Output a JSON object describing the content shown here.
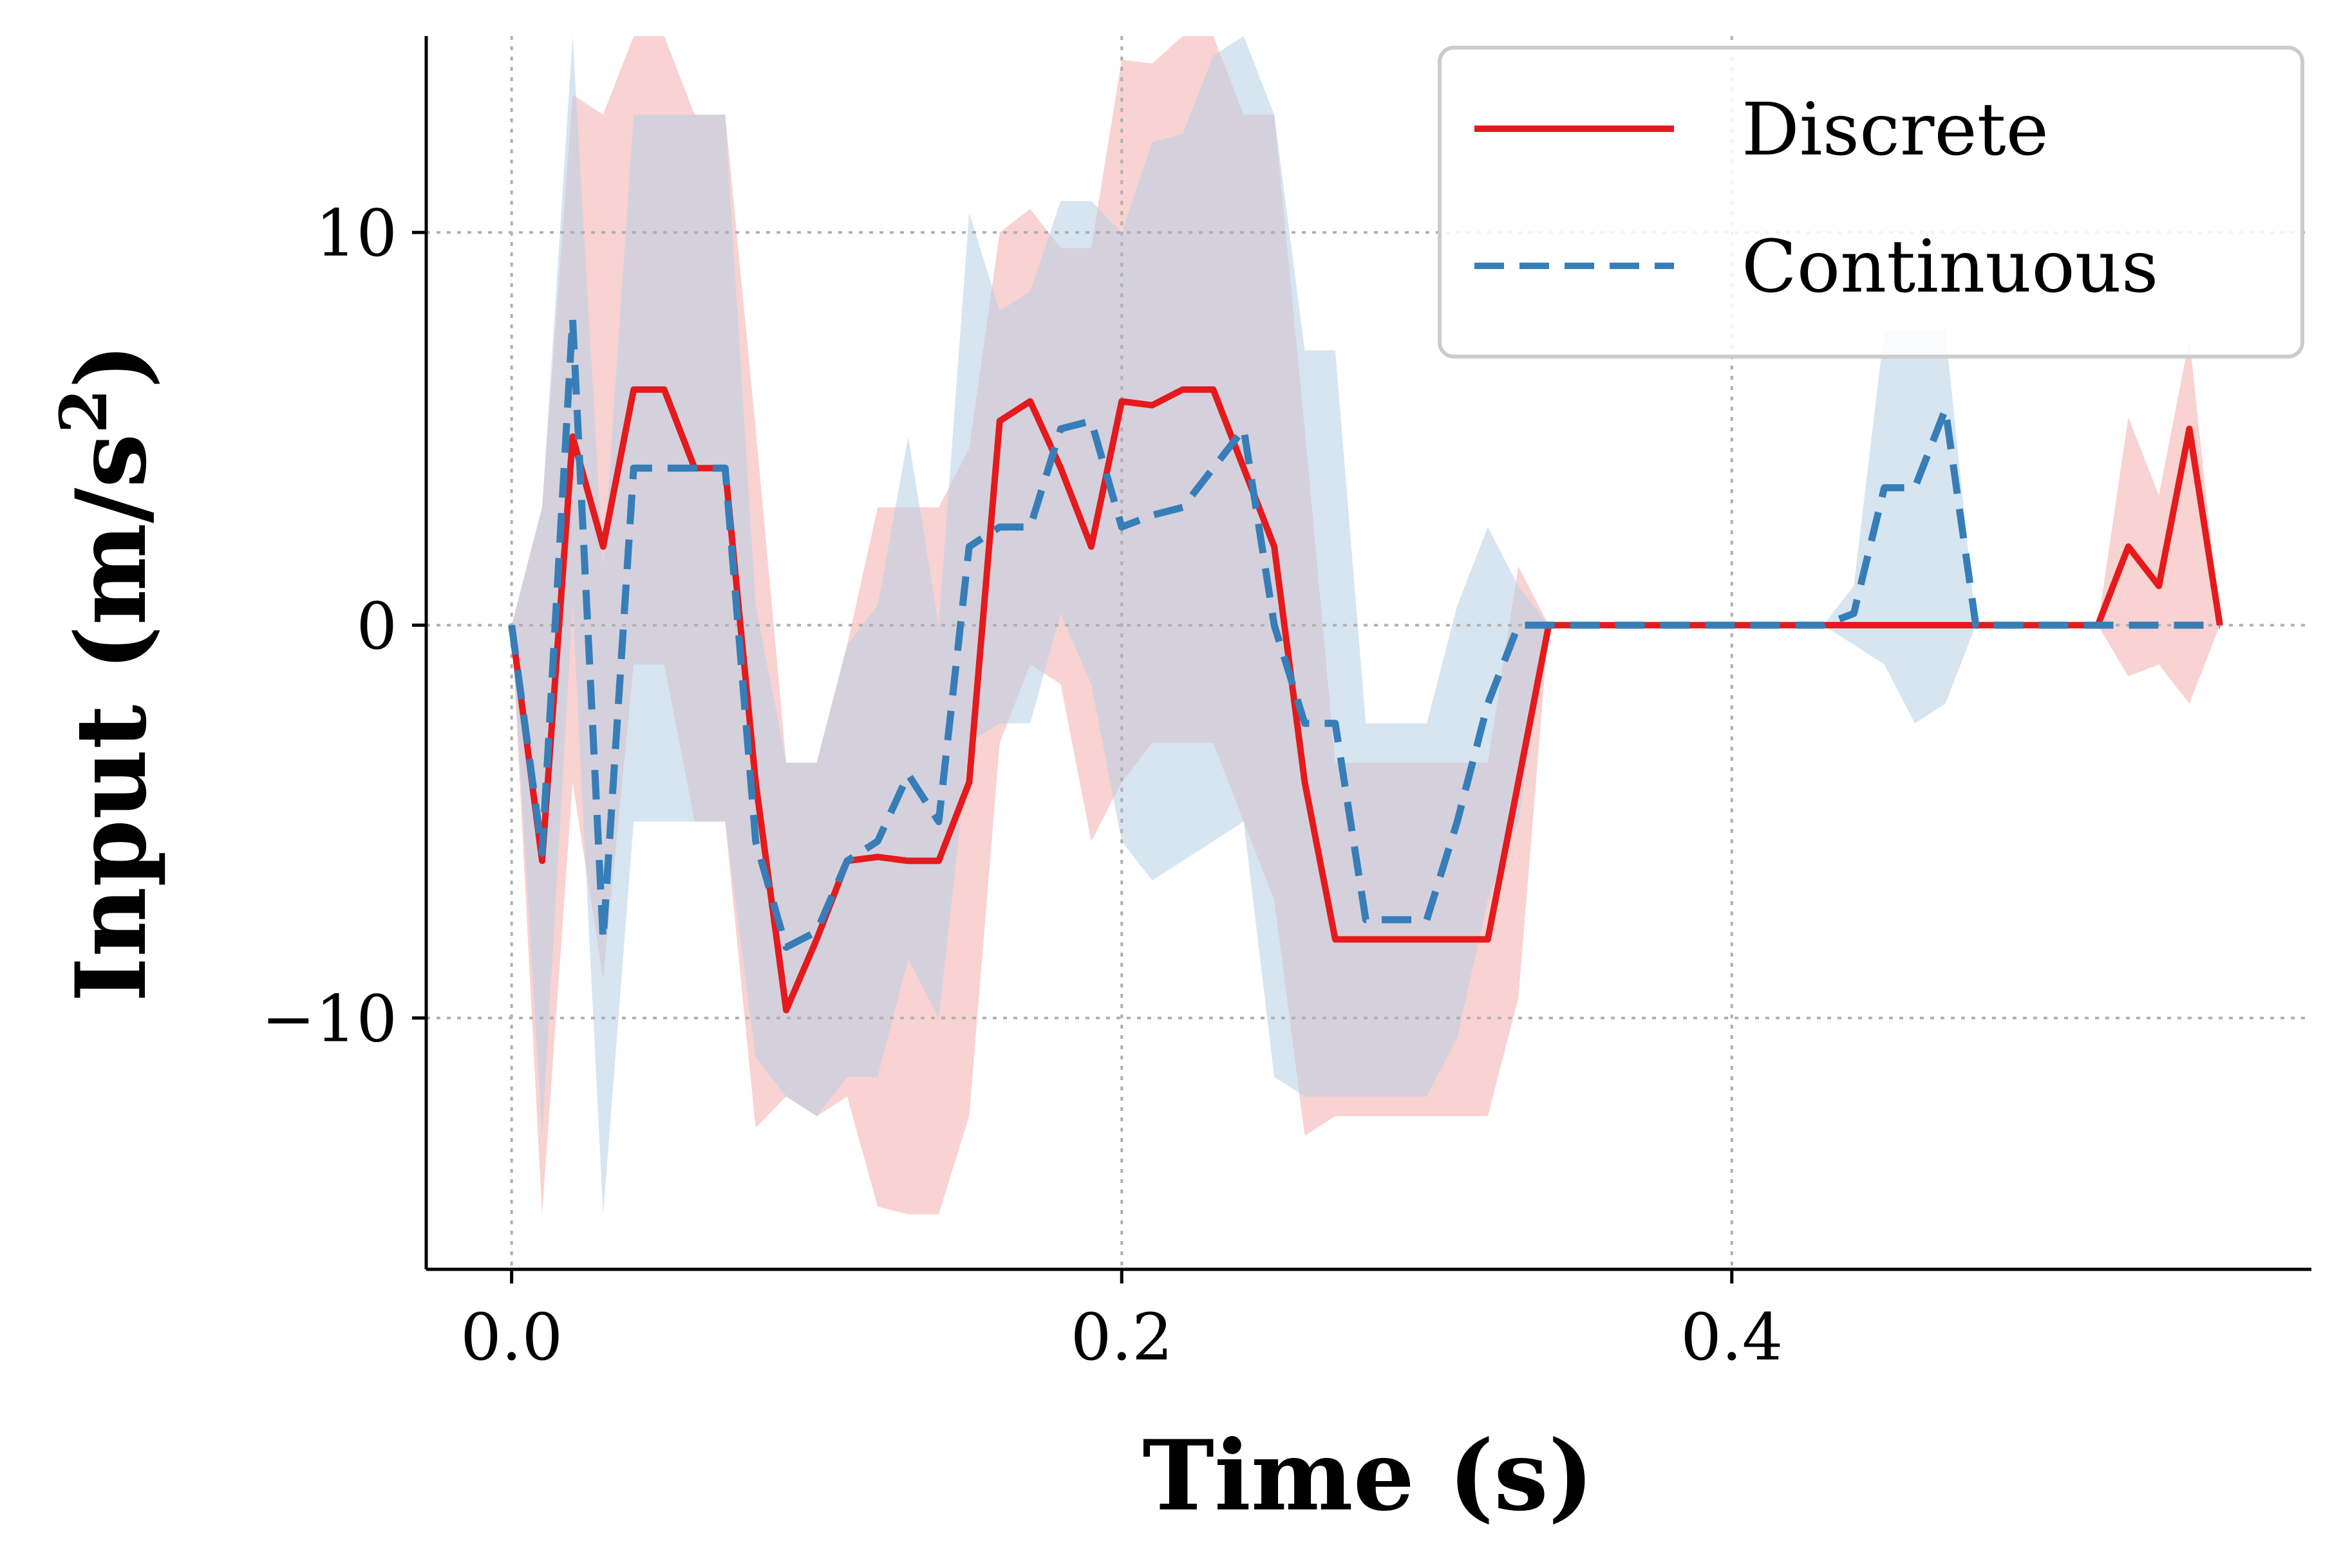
{
  "chart_data": {
    "type": "line",
    "xlabel": "Time (s)",
    "ylabel_main": "Input (m/s",
    "ylabel_sup": "2",
    "ylabel_close": ")",
    "xlim": [
      -0.028,
      0.59
    ],
    "ylim": [
      -16.4,
      15.0
    ],
    "xticks": [
      {
        "value": 0.0,
        "label": "0.0"
      },
      {
        "value": 0.2,
        "label": "0.2"
      },
      {
        "value": 0.4,
        "label": "0.4"
      }
    ],
    "yticks": [
      {
        "value": -10,
        "label": "−10"
      },
      {
        "value": 0,
        "label": "0"
      },
      {
        "value": 10,
        "label": "10"
      }
    ],
    "grid": true,
    "legend_position": "top-right",
    "series": [
      {
        "name": "Discrete",
        "color": "#e41a1c",
        "style": "solid",
        "band_color": "#f4a5a6",
        "points": [
          {
            "x": 0.0,
            "y": 0.0,
            "lo": 0.0,
            "hi": 0.0
          },
          {
            "x": 0.01,
            "y": -6.0,
            "lo": -15.0,
            "hi": 3.0
          },
          {
            "x": 0.02,
            "y": 4.8,
            "lo": -4.0,
            "hi": 13.5
          },
          {
            "x": 0.03,
            "y": 2.0,
            "lo": -9.0,
            "hi": 13.0
          },
          {
            "x": 0.04,
            "y": 6.0,
            "lo": -1.0,
            "hi": 15.0
          },
          {
            "x": 0.05,
            "y": 6.0,
            "lo": -1.0,
            "hi": 15.0
          },
          {
            "x": 0.06,
            "y": 4.0,
            "lo": -5.0,
            "hi": 13.0
          },
          {
            "x": 0.07,
            "y": 4.0,
            "lo": -5.0,
            "hi": 13.0
          },
          {
            "x": 0.08,
            "y": -4.0,
            "lo": -12.8,
            "hi": 5.0
          },
          {
            "x": 0.09,
            "y": -9.8,
            "lo": -12.0,
            "hi": -3.5
          },
          {
            "x": 0.1,
            "y": -8.0,
            "lo": -12.5,
            "hi": -3.5
          },
          {
            "x": 0.11,
            "y": -6.0,
            "lo": -12.0,
            "hi": -0.5
          },
          {
            "x": 0.12,
            "y": -5.9,
            "lo": -14.8,
            "hi": 3.0
          },
          {
            "x": 0.13,
            "y": -6.0,
            "lo": -15.0,
            "hi": 3.0
          },
          {
            "x": 0.14,
            "y": -6.0,
            "lo": -15.0,
            "hi": 3.0
          },
          {
            "x": 0.15,
            "y": -4.0,
            "lo": -12.5,
            "hi": 4.5
          },
          {
            "x": 0.16,
            "y": 5.2,
            "lo": -3.0,
            "hi": 10.0
          },
          {
            "x": 0.17,
            "y": 5.7,
            "lo": -1.0,
            "hi": 10.6
          },
          {
            "x": 0.18,
            "y": 4.0,
            "lo": -1.5,
            "hi": 9.6
          },
          {
            "x": 0.19,
            "y": 2.0,
            "lo": -5.5,
            "hi": 9.6
          },
          {
            "x": 0.2,
            "y": 5.7,
            "lo": -4.0,
            "hi": 14.4
          },
          {
            "x": 0.21,
            "y": 5.6,
            "lo": -3.0,
            "hi": 14.3
          },
          {
            "x": 0.22,
            "y": 6.0,
            "lo": -3.0,
            "hi": 15.0
          },
          {
            "x": 0.23,
            "y": 6.0,
            "lo": -3.0,
            "hi": 15.0
          },
          {
            "x": 0.24,
            "y": 4.0,
            "lo": -5.0,
            "hi": 13.0
          },
          {
            "x": 0.25,
            "y": 2.0,
            "lo": -7.0,
            "hi": 13.0
          },
          {
            "x": 0.26,
            "y": -4.0,
            "lo": -13.0,
            "hi": 5.0
          },
          {
            "x": 0.27,
            "y": -8.0,
            "lo": -12.5,
            "hi": -3.5
          },
          {
            "x": 0.28,
            "y": -8.0,
            "lo": -12.5,
            "hi": -3.5
          },
          {
            "x": 0.29,
            "y": -8.0,
            "lo": -12.5,
            "hi": -3.5
          },
          {
            "x": 0.3,
            "y": -8.0,
            "lo": -12.5,
            "hi": -3.5
          },
          {
            "x": 0.31,
            "y": -8.0,
            "lo": -12.5,
            "hi": -3.5
          },
          {
            "x": 0.32,
            "y": -8.0,
            "lo": -12.5,
            "hi": -3.5
          },
          {
            "x": 0.33,
            "y": -4.0,
            "lo": -9.5,
            "hi": 1.5
          },
          {
            "x": 0.34,
            "y": 0.0,
            "lo": 0.0,
            "hi": 0.0
          },
          {
            "x": 0.52,
            "y": 0.0,
            "lo": 0.0,
            "hi": 0.0
          },
          {
            "x": 0.53,
            "y": 2.0,
            "lo": -1.3,
            "hi": 5.3
          },
          {
            "x": 0.54,
            "y": 1.0,
            "lo": -1.0,
            "hi": 3.3
          },
          {
            "x": 0.55,
            "y": 5.0,
            "lo": -2.0,
            "hi": 7.3
          },
          {
            "x": 0.56,
            "y": 0.0,
            "lo": 0.0,
            "hi": 0.0
          }
        ]
      },
      {
        "name": "Continuous",
        "color": "#377eb8",
        "style": "dashed",
        "band_color": "#b7cfe5",
        "points": [
          {
            "x": 0.0,
            "y": 0.0,
            "lo": 0.0,
            "hi": 0.0
          },
          {
            "x": 0.01,
            "y": -5.8,
            "lo": -13.0,
            "hi": 3.0
          },
          {
            "x": 0.02,
            "y": 7.8,
            "lo": 0.5,
            "hi": 15.0
          },
          {
            "x": 0.03,
            "y": -8.0,
            "lo": -15.0,
            "hi": 1.5
          },
          {
            "x": 0.04,
            "y": 4.0,
            "lo": -5.0,
            "hi": 13.0
          },
          {
            "x": 0.05,
            "y": 4.0,
            "lo": -5.0,
            "hi": 13.0
          },
          {
            "x": 0.06,
            "y": 4.0,
            "lo": -5.0,
            "hi": 13.0
          },
          {
            "x": 0.07,
            "y": 4.0,
            "lo": -5.0,
            "hi": 13.0
          },
          {
            "x": 0.08,
            "y": -5.5,
            "lo": -11.0,
            "hi": 0.5
          },
          {
            "x": 0.09,
            "y": -8.2,
            "lo": -12.0,
            "hi": -3.5
          },
          {
            "x": 0.1,
            "y": -7.8,
            "lo": -12.5,
            "hi": -3.5
          },
          {
            "x": 0.11,
            "y": -6.0,
            "lo": -11.5,
            "hi": -0.5
          },
          {
            "x": 0.12,
            "y": -5.5,
            "lo": -11.5,
            "hi": 0.5
          },
          {
            "x": 0.13,
            "y": -3.8,
            "lo": -8.5,
            "hi": 4.8
          },
          {
            "x": 0.14,
            "y": -5.0,
            "lo": -10.0,
            "hi": 0.0
          },
          {
            "x": 0.15,
            "y": 2.0,
            "lo": -3.0,
            "hi": 10.5
          },
          {
            "x": 0.16,
            "y": 2.5,
            "lo": -2.5,
            "hi": 8.0
          },
          {
            "x": 0.17,
            "y": 2.5,
            "lo": -2.5,
            "hi": 8.5
          },
          {
            "x": 0.18,
            "y": 5.0,
            "lo": 0.3,
            "hi": 10.8
          },
          {
            "x": 0.19,
            "y": 5.2,
            "lo": -1.5,
            "hi": 10.8
          },
          {
            "x": 0.2,
            "y": 2.5,
            "lo": -5.5,
            "hi": 10.0
          },
          {
            "x": 0.21,
            "y": 2.8,
            "lo": -6.5,
            "hi": 12.3
          },
          {
            "x": 0.22,
            "y": 3.0,
            "lo": -6.0,
            "hi": 12.5
          },
          {
            "x": 0.23,
            "y": 4.0,
            "lo": -5.5,
            "hi": 14.5
          },
          {
            "x": 0.24,
            "y": 5.0,
            "lo": -5.0,
            "hi": 15.0
          },
          {
            "x": 0.25,
            "y": 0.0,
            "lo": -11.5,
            "hi": 13.0
          },
          {
            "x": 0.26,
            "y": -2.5,
            "lo": -12.0,
            "hi": 7.0
          },
          {
            "x": 0.27,
            "y": -2.5,
            "lo": -12.0,
            "hi": 7.0
          },
          {
            "x": 0.28,
            "y": -7.5,
            "lo": -12.0,
            "hi": -2.5
          },
          {
            "x": 0.29,
            "y": -7.5,
            "lo": -12.0,
            "hi": -2.5
          },
          {
            "x": 0.3,
            "y": -7.5,
            "lo": -12.0,
            "hi": -2.5
          },
          {
            "x": 0.31,
            "y": -5.0,
            "lo": -10.5,
            "hi": 0.5
          },
          {
            "x": 0.32,
            "y": -2.0,
            "lo": -7.0,
            "hi": 2.5
          },
          {
            "x": 0.33,
            "y": 0.0,
            "lo": -5.0,
            "hi": 1.0
          },
          {
            "x": 0.34,
            "y": 0.0,
            "lo": 0.0,
            "hi": 0.0
          },
          {
            "x": 0.43,
            "y": 0.0,
            "lo": 0.0,
            "hi": 0.0
          },
          {
            "x": 0.44,
            "y": 0.3,
            "lo": -0.5,
            "hi": 1.0
          },
          {
            "x": 0.45,
            "y": 3.5,
            "lo": -1.0,
            "hi": 7.5
          },
          {
            "x": 0.46,
            "y": 3.5,
            "lo": -2.5,
            "hi": 7.5
          },
          {
            "x": 0.47,
            "y": 5.5,
            "lo": -2.0,
            "hi": 7.5
          },
          {
            "x": 0.48,
            "y": 0.0,
            "lo": 0.0,
            "hi": 0.0
          },
          {
            "x": 0.56,
            "y": 0.0,
            "lo": 0.0,
            "hi": 0.0
          }
        ]
      }
    ]
  }
}
